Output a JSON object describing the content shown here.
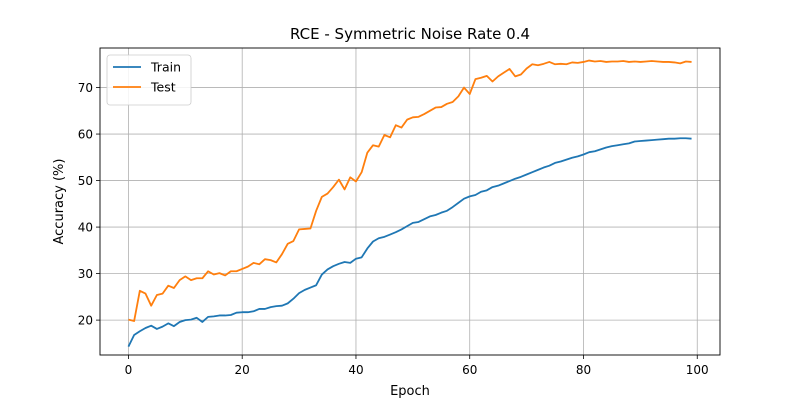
{
  "chart_data": {
    "type": "line",
    "title": "RCE - Symmetric Noise Rate 0.4",
    "xlabel": "Epoch",
    "ylabel": "Accuracy (%)",
    "xlim": [
      -5,
      104
    ],
    "ylim": [
      12.5,
      78.5
    ],
    "xticks": [
      0,
      20,
      40,
      60,
      80,
      100
    ],
    "yticks": [
      20,
      30,
      40,
      50,
      60,
      70
    ],
    "grid": true,
    "legend_position": "top-left",
    "x": [
      0,
      1,
      2,
      3,
      4,
      5,
      6,
      7,
      8,
      9,
      10,
      11,
      12,
      13,
      14,
      15,
      16,
      17,
      18,
      19,
      20,
      21,
      22,
      23,
      24,
      25,
      26,
      27,
      28,
      29,
      30,
      31,
      32,
      33,
      34,
      35,
      36,
      37,
      38,
      39,
      40,
      41,
      42,
      43,
      44,
      45,
      46,
      47,
      48,
      49,
      50,
      51,
      52,
      53,
      54,
      55,
      56,
      57,
      58,
      59,
      60,
      61,
      62,
      63,
      64,
      65,
      66,
      67,
      68,
      69,
      70,
      71,
      72,
      73,
      74,
      75,
      76,
      77,
      78,
      79,
      80,
      81,
      82,
      83,
      84,
      85,
      86,
      87,
      88,
      89,
      90,
      91,
      92,
      93,
      94,
      95,
      96,
      97,
      98,
      99
    ],
    "series": [
      {
        "name": "Train",
        "color": "#1f77b4",
        "values": [
          14.3,
          16.8,
          17.6,
          18.3,
          18.8,
          18.1,
          18.6,
          19.3,
          18.7,
          19.6,
          20.0,
          20.1,
          20.5,
          19.6,
          20.7,
          20.8,
          21.0,
          21.0,
          21.1,
          21.6,
          21.7,
          21.7,
          21.9,
          22.4,
          22.4,
          22.8,
          23.0,
          23.1,
          23.6,
          24.6,
          25.8,
          26.5,
          27.0,
          27.5,
          29.8,
          30.9,
          31.6,
          32.1,
          32.5,
          32.3,
          33.2,
          33.5,
          35.4,
          36.9,
          37.6,
          37.9,
          38.4,
          38.9,
          39.5,
          40.2,
          40.9,
          41.1,
          41.7,
          42.3,
          42.6,
          43.1,
          43.5,
          44.3,
          45.2,
          46.1,
          46.6,
          46.9,
          47.6,
          47.9,
          48.6,
          48.9,
          49.4,
          49.9,
          50.4,
          50.8,
          51.3,
          51.8,
          52.3,
          52.8,
          53.2,
          53.8,
          54.1,
          54.5,
          54.9,
          55.2,
          55.6,
          56.1,
          56.3,
          56.7,
          57.1,
          57.4,
          57.6,
          57.8,
          58.0,
          58.4,
          58.5,
          58.6,
          58.7,
          58.8,
          58.9,
          59.0,
          59.0,
          59.1,
          59.1,
          59.0
        ]
      },
      {
        "name": "Test",
        "color": "#ff7f0e",
        "values": [
          20.1,
          19.8,
          26.3,
          25.7,
          23.1,
          25.4,
          25.7,
          27.4,
          26.9,
          28.6,
          29.4,
          28.6,
          29.0,
          29.0,
          30.5,
          29.8,
          30.1,
          29.6,
          30.5,
          30.5,
          31.0,
          31.5,
          32.3,
          32.0,
          33.1,
          32.9,
          32.4,
          34.2,
          36.4,
          37.0,
          39.5,
          39.6,
          39.7,
          43.5,
          46.5,
          47.2,
          48.6,
          50.2,
          48.1,
          50.7,
          49.8,
          51.8,
          56.0,
          57.6,
          57.3,
          59.8,
          59.3,
          61.9,
          61.4,
          63.1,
          63.6,
          63.7,
          64.3,
          65.0,
          65.7,
          65.8,
          66.5,
          66.9,
          68.1,
          70.0,
          68.6,
          71.8,
          72.1,
          72.5,
          71.3,
          72.4,
          73.2,
          74.0,
          72.4,
          72.8,
          74.1,
          75.0,
          74.8,
          75.1,
          75.5,
          75.0,
          75.1,
          75.0,
          75.4,
          75.3,
          75.5,
          75.8,
          75.6,
          75.7,
          75.5,
          75.6,
          75.6,
          75.7,
          75.5,
          75.6,
          75.5,
          75.6,
          75.7,
          75.6,
          75.5,
          75.5,
          75.4,
          75.2,
          75.6,
          75.5
        ]
      }
    ]
  }
}
